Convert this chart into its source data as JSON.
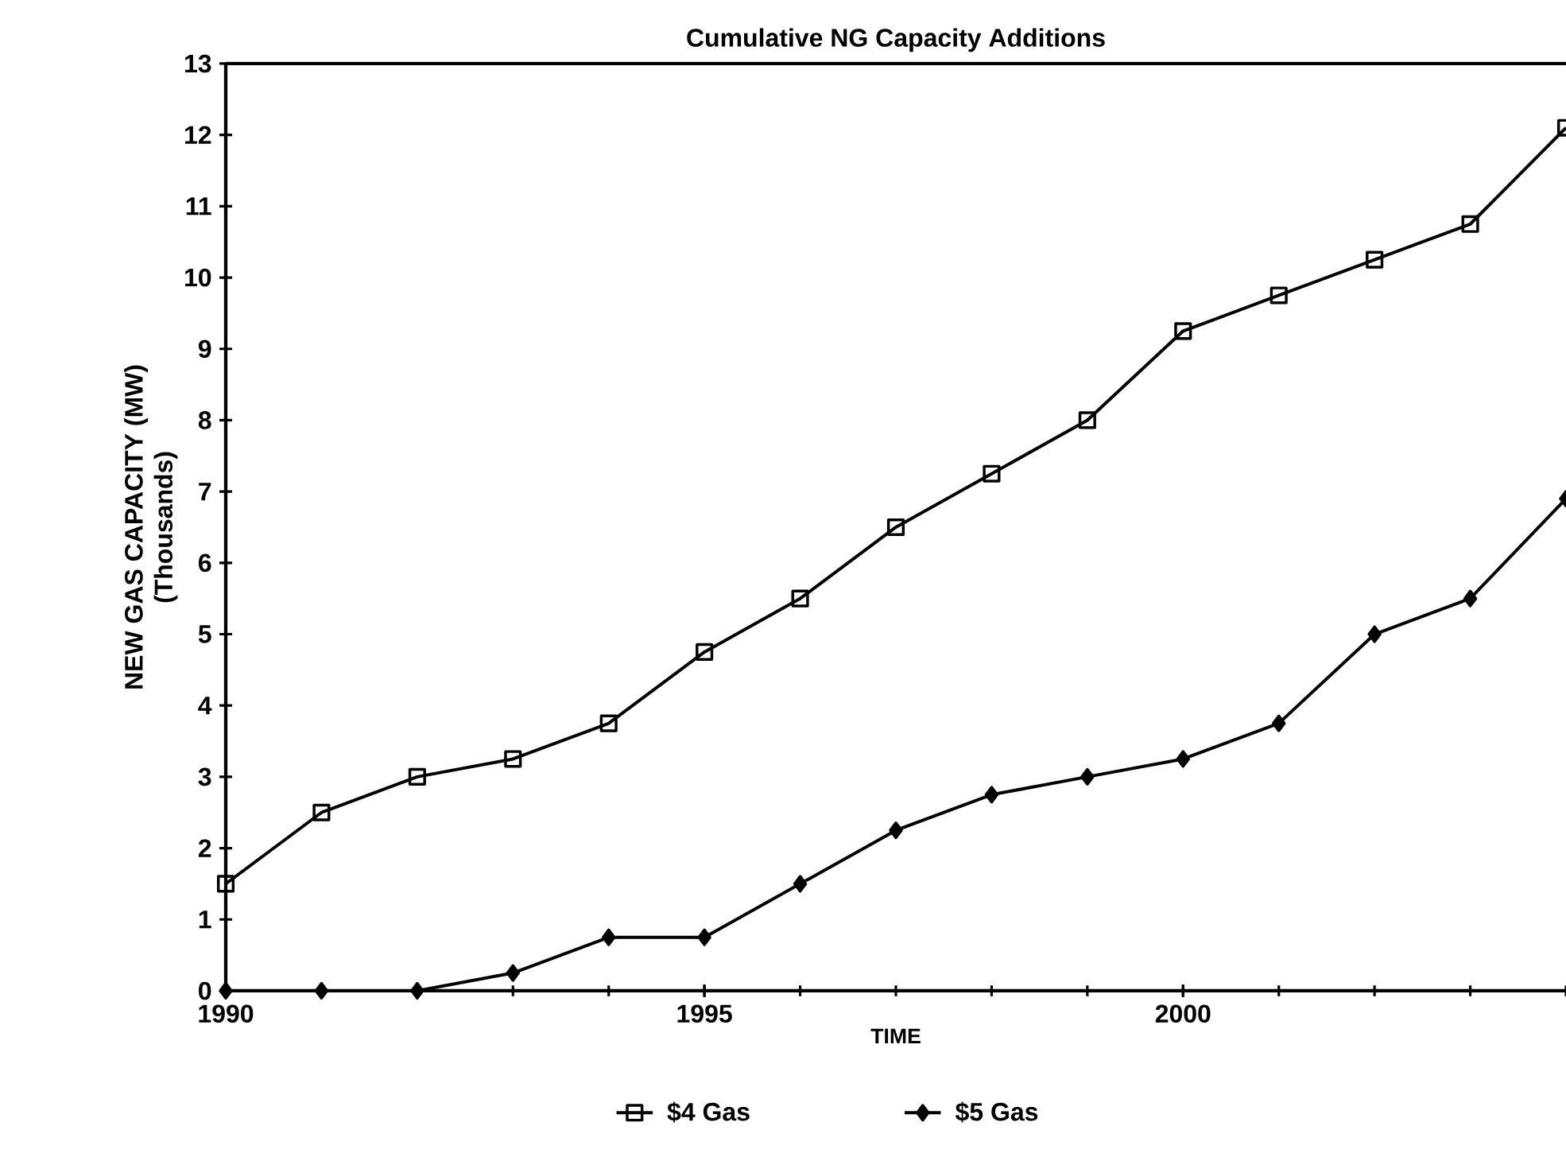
{
  "chart_data": {
    "type": "line",
    "title": "Cumulative NG Capacity Additions",
    "xlabel": "TIME",
    "ylabel": "NEW GAS CAPACITY (MW)",
    "annotations": [
      "(Thousands)"
    ],
    "x": [
      1990,
      1991,
      1992,
      1993,
      1994,
      1995,
      1996,
      1997,
      1998,
      1999,
      2000,
      2001,
      2002,
      2003,
      2004
    ],
    "series": [
      {
        "name": "$4 Gas",
        "color": "#000000",
        "marker": "square",
        "values": [
          1.5,
          2.5,
          3.0,
          3.25,
          3.75,
          4.75,
          5.5,
          6.5,
          7.25,
          8.0,
          9.25,
          9.75,
          10.25,
          10.75,
          12.1
        ]
      },
      {
        "name": "$5 Gas",
        "color": "#000000",
        "marker": "diamond",
        "values": [
          0,
          0,
          0,
          0.25,
          0.75,
          0.75,
          1.5,
          2.25,
          2.75,
          3.0,
          3.25,
          3.75,
          5.0,
          5.5,
          6.9
        ]
      }
    ],
    "xlim": [
      1990,
      2004
    ],
    "xticks": [
      1990,
      1995,
      2000
    ],
    "ylim": [
      0,
      13
    ],
    "yticks": [
      0,
      1,
      2,
      3,
      4,
      5,
      6,
      7,
      8,
      9,
      10,
      11,
      12,
      13
    ],
    "grid": false,
    "legend": "bottom",
    "line_style": "solid"
  }
}
